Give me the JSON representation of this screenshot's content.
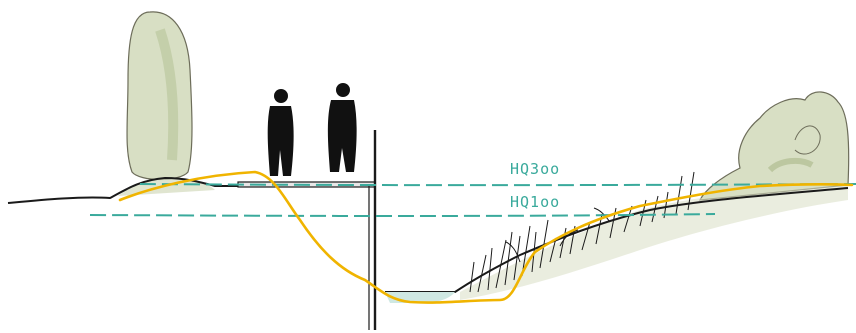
{
  "labels": {
    "hq300": "HQ3oo",
    "hq100": "HQ1oo"
  },
  "colors": {
    "ink": "#1a1a1a",
    "water_level": "#3aaa9c",
    "profile_line": "#f0b400",
    "vegetation": "#d8dfc4",
    "vegetation_shade": "#bcc7a0",
    "water": "#cfe8e3"
  },
  "icons": [
    "tree-icon",
    "person-icon",
    "bush-icon",
    "reed-icon"
  ]
}
